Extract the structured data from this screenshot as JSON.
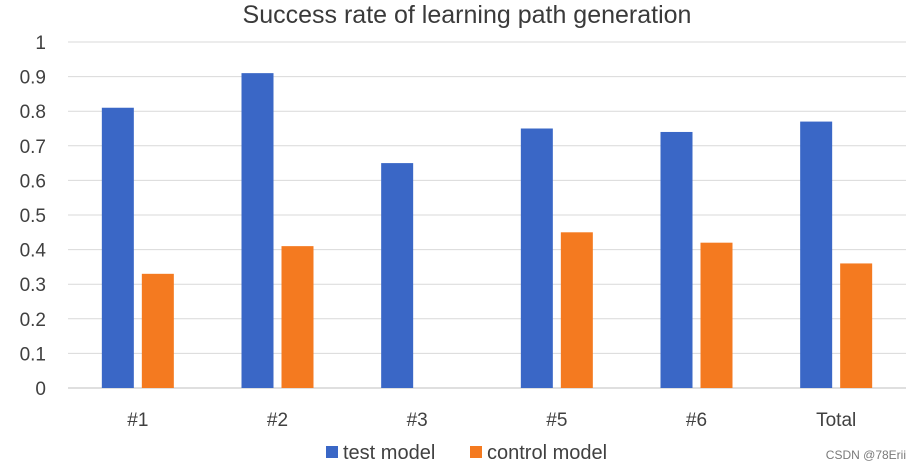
{
  "chart_data": {
    "type": "bar",
    "title": "Success rate of learning path generation",
    "categories": [
      "#1",
      "#2",
      "#3",
      "#5",
      "#6",
      "Total"
    ],
    "series": [
      {
        "name": "test model",
        "color": "#3A67C6",
        "values": [
          0.81,
          0.91,
          0.65,
          0.75,
          0.74,
          0.77
        ]
      },
      {
        "name": "control model",
        "color": "#F47A20",
        "values": [
          0.33,
          0.41,
          null,
          0.45,
          0.42,
          0.36
        ]
      }
    ],
    "ylim": [
      0,
      1
    ],
    "yticks": [
      "0",
      "0.1",
      "0.2",
      "0.3",
      "0.4",
      "0.5",
      "0.6",
      "0.7",
      "0.8",
      "0.9",
      "1"
    ],
    "grid": true,
    "legend": "bottom"
  },
  "watermark": "CSDN @78Erii"
}
